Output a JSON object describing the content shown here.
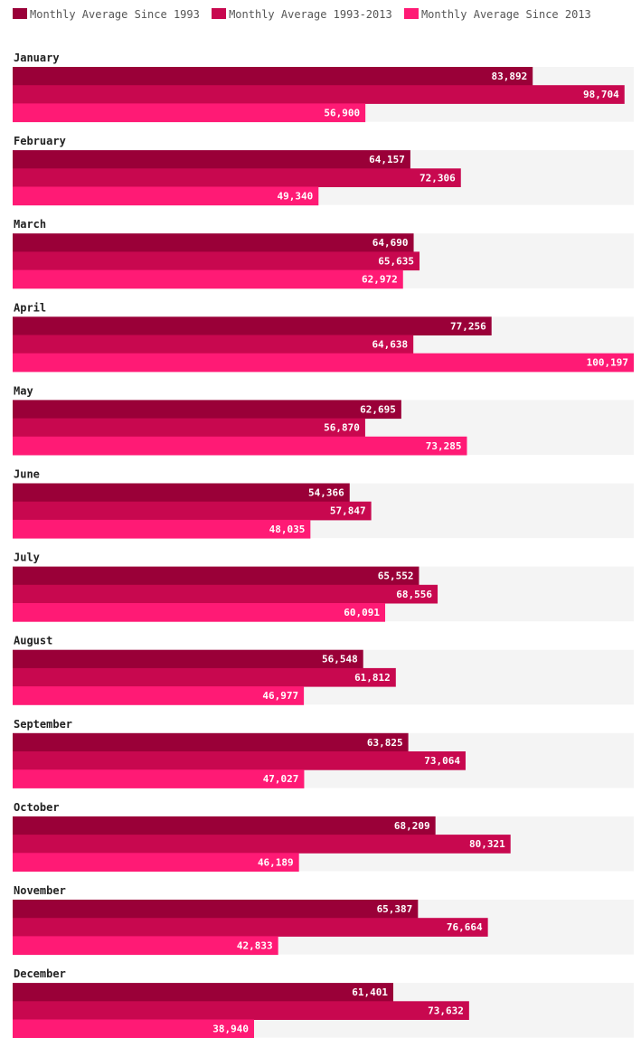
{
  "chart_data": {
    "type": "bar",
    "orientation": "horizontal",
    "categories": [
      "January",
      "February",
      "March",
      "April",
      "May",
      "June",
      "July",
      "August",
      "September",
      "October",
      "November",
      "December"
    ],
    "series": [
      {
        "name": "Monthly Average Since 1993",
        "color": "#9a0038",
        "values": [
          83892,
          64157,
          64690,
          77256,
          62695,
          54366,
          65552,
          56548,
          63825,
          68209,
          65387,
          61401
        ]
      },
      {
        "name": "Monthly Average 1993-2013",
        "color": "#c8084f",
        "values": [
          98704,
          72306,
          65635,
          64638,
          56870,
          57847,
          68556,
          61812,
          73064,
          80321,
          76664,
          73632
        ]
      },
      {
        "name": "Monthly Average Since 2013",
        "color": "#ff1a75",
        "values": [
          56900,
          49340,
          62972,
          100197,
          73285,
          48035,
          60091,
          46977,
          47027,
          46189,
          42833,
          38940
        ]
      }
    ],
    "value_labels": [
      [
        "83,892",
        "98,704",
        "56,900"
      ],
      [
        "64,157",
        "72,306",
        "49,340"
      ],
      [
        "64,690",
        "65,635",
        "62,972"
      ],
      [
        "77,256",
        "64,638",
        "100,197"
      ],
      [
        "62,695",
        "56,870",
        "73,285"
      ],
      [
        "54,366",
        "57,847",
        "48,035"
      ],
      [
        "65,552",
        "68,556",
        "60,091"
      ],
      [
        "56,548",
        "61,812",
        "46,977"
      ],
      [
        "63,825",
        "73,064",
        "47,027"
      ],
      [
        "68,209",
        "80,321",
        "46,189"
      ],
      [
        "65,387",
        "76,664",
        "42,833"
      ],
      [
        "61,401",
        "73,632",
        "38,940"
      ]
    ],
    "xlim": [
      0,
      100197
    ],
    "legend": "top",
    "background_band_color": "#f4f4f4",
    "grid": false
  }
}
